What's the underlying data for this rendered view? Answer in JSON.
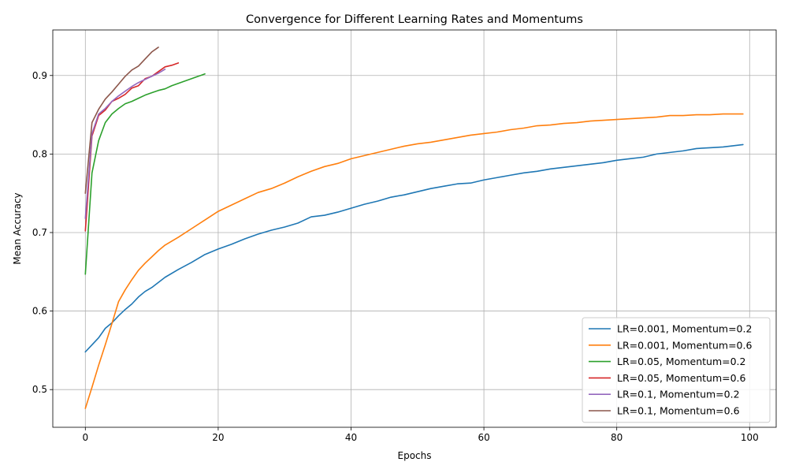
{
  "chart_data": {
    "type": "line",
    "title": "Convergence for Different Learning Rates and Momentums",
    "xlabel": "Epochs",
    "ylabel": "Mean Accuracy",
    "xlim": [
      -4.9,
      104
    ],
    "ylim": [
      0.452,
      0.958
    ],
    "xticks": [
      0,
      20,
      40,
      60,
      80,
      100
    ],
    "yticks": [
      0.5,
      0.6,
      0.7,
      0.8,
      0.9
    ],
    "xtick_labels": [
      "0",
      "20",
      "40",
      "60",
      "80",
      "100"
    ],
    "ytick_labels": [
      "0.5",
      "0.6",
      "0.7",
      "0.8",
      "0.9"
    ],
    "grid": true,
    "legend_position": "lower-right",
    "series": [
      {
        "name": "LR=0.001, Momentum=0.2",
        "color": "#1f77b4",
        "x": [
          0,
          1,
          2,
          3,
          4,
          5,
          6,
          7,
          8,
          9,
          10,
          12,
          14,
          16,
          18,
          20,
          22,
          24,
          26,
          28,
          30,
          32,
          34,
          36,
          38,
          40,
          42,
          44,
          46,
          48,
          50,
          52,
          54,
          56,
          58,
          60,
          62,
          64,
          66,
          68,
          70,
          72,
          74,
          76,
          78,
          80,
          82,
          84,
          86,
          88,
          90,
          92,
          94,
          96,
          98,
          99
        ],
        "y": [
          0.548,
          0.557,
          0.566,
          0.578,
          0.585,
          0.594,
          0.602,
          0.609,
          0.618,
          0.625,
          0.63,
          0.643,
          0.653,
          0.662,
          0.672,
          0.679,
          0.685,
          0.692,
          0.698,
          0.703,
          0.707,
          0.712,
          0.72,
          0.722,
          0.726,
          0.731,
          0.736,
          0.74,
          0.745,
          0.748,
          0.752,
          0.756,
          0.759,
          0.762,
          0.763,
          0.767,
          0.77,
          0.773,
          0.776,
          0.778,
          0.781,
          0.783,
          0.785,
          0.787,
          0.789,
          0.792,
          0.794,
          0.796,
          0.8,
          0.802,
          0.804,
          0.807,
          0.808,
          0.809,
          0.811,
          0.812
        ]
      },
      {
        "name": "LR=0.001, Momentum=0.6",
        "color": "#ff7f0e",
        "x": [
          0,
          1,
          2,
          3,
          4,
          5,
          6,
          7,
          8,
          9,
          10,
          11,
          12,
          14,
          16,
          18,
          20,
          22,
          24,
          26,
          28,
          30,
          32,
          34,
          36,
          38,
          40,
          42,
          44,
          46,
          48,
          50,
          52,
          54,
          56,
          58,
          60,
          62,
          64,
          66,
          68,
          70,
          72,
          74,
          76,
          78,
          80,
          82,
          84,
          86,
          88,
          90,
          92,
          94,
          96,
          98,
          99
        ],
        "y": [
          0.476,
          0.503,
          0.531,
          0.557,
          0.584,
          0.612,
          0.627,
          0.64,
          0.652,
          0.661,
          0.669,
          0.677,
          0.684,
          0.694,
          0.705,
          0.716,
          0.727,
          0.735,
          0.743,
          0.751,
          0.756,
          0.763,
          0.771,
          0.778,
          0.784,
          0.788,
          0.794,
          0.798,
          0.802,
          0.806,
          0.81,
          0.813,
          0.815,
          0.818,
          0.821,
          0.824,
          0.826,
          0.828,
          0.831,
          0.833,
          0.836,
          0.837,
          0.839,
          0.84,
          0.842,
          0.843,
          0.844,
          0.845,
          0.846,
          0.847,
          0.849,
          0.849,
          0.85,
          0.85,
          0.851,
          0.851,
          0.851
        ]
      },
      {
        "name": "LR=0.05, Momentum=0.2",
        "color": "#2ca02c",
        "x": [
          0,
          1,
          2,
          3,
          4,
          5,
          6,
          7,
          8,
          9,
          10,
          11,
          12,
          13,
          14,
          15,
          16,
          17,
          18
        ],
        "y": [
          0.647,
          0.776,
          0.817,
          0.84,
          0.851,
          0.858,
          0.864,
          0.867,
          0.871,
          0.875,
          0.878,
          0.881,
          0.883,
          0.887,
          0.89,
          0.893,
          0.896,
          0.899,
          0.902
        ]
      },
      {
        "name": "LR=0.05, Momentum=0.6",
        "color": "#d62728",
        "x": [
          0,
          1,
          2,
          3,
          4,
          5,
          6,
          7,
          8,
          9,
          10,
          11,
          12,
          13,
          14
        ],
        "y": [
          0.702,
          0.823,
          0.849,
          0.856,
          0.867,
          0.871,
          0.876,
          0.884,
          0.887,
          0.896,
          0.899,
          0.905,
          0.911,
          0.913,
          0.916
        ]
      },
      {
        "name": "LR=0.1, Momentum=0.2",
        "color": "#9467bd",
        "x": [
          0,
          1,
          2,
          3,
          4,
          5,
          6,
          7,
          8,
          9,
          10,
          11,
          12
        ],
        "y": [
          0.718,
          0.826,
          0.851,
          0.858,
          0.867,
          0.874,
          0.88,
          0.886,
          0.891,
          0.895,
          0.899,
          0.903,
          0.908
        ]
      },
      {
        "name": "LR=0.1, Momentum=0.6",
        "color": "#8c564b",
        "x": [
          0,
          1,
          2,
          3,
          4,
          5,
          6,
          7,
          8,
          9,
          10,
          11
        ],
        "y": [
          0.75,
          0.84,
          0.857,
          0.87,
          0.879,
          0.889,
          0.899,
          0.907,
          0.912,
          0.921,
          0.93,
          0.936
        ]
      }
    ]
  }
}
